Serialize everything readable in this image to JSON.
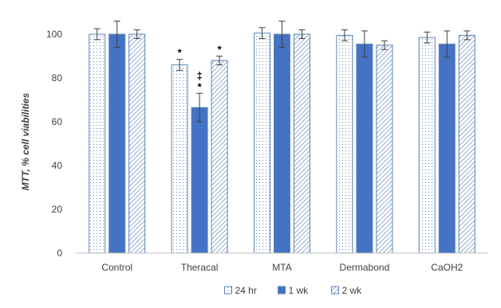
{
  "chart_data": {
    "type": "bar",
    "ylabel": "MTT, % cell viabilities",
    "xlabel": "",
    "ylim": [
      0,
      100
    ],
    "yticks": [
      "0",
      "20",
      "40",
      "60",
      "80",
      "100"
    ],
    "categories": [
      "Control",
      "Theracal",
      "MTA",
      "Dermabond",
      "CaOH2"
    ],
    "series": [
      {
        "name": "24 hr",
        "values": [
          100,
          86,
          100.5,
          99.5,
          98.5
        ],
        "errors": [
          2.5,
          2.5,
          2.5,
          2.5,
          2.5
        ],
        "pattern": "dots"
      },
      {
        "name": "1 wk",
        "values": [
          100,
          66.5,
          100,
          95.5,
          95.5
        ],
        "errors": [
          6,
          6.5,
          6,
          6,
          6
        ],
        "pattern": "solid"
      },
      {
        "name": "2 wk",
        "values": [
          100,
          88,
          100,
          95,
          99.5
        ],
        "errors": [
          2,
          2,
          2,
          2,
          2
        ],
        "pattern": "hatch"
      }
    ],
    "annotations": [
      {
        "category": "Theracal",
        "series": "24 hr",
        "text": "*"
      },
      {
        "category": "Theracal",
        "series": "1 wk",
        "text": "*"
      },
      {
        "category": "Theracal",
        "series": "1 wk",
        "text": "‡"
      },
      {
        "category": "Theracal",
        "series": "2 wk",
        "text": "*"
      }
    ],
    "grid": false,
    "legend_position": "bottom",
    "colors": {
      "edge": "#5b84b8",
      "solid_fill": "#4472c4",
      "pattern_light": "#ffffff",
      "axis": "#bfbfbf",
      "text": "#404040"
    }
  }
}
